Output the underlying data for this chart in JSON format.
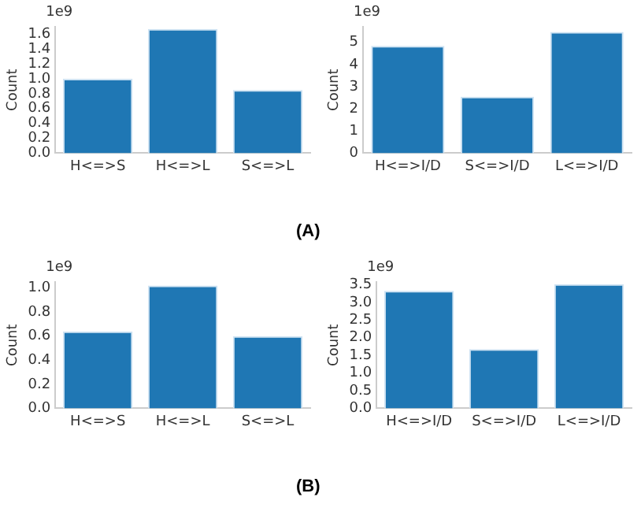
{
  "chart_data": [
    {
      "type": "bar",
      "categories": [
        "H<=>S",
        "H<=>L",
        "S<=>L"
      ],
      "values": [
        1.0,
        1.67,
        0.85
      ],
      "color": "#1f77b4",
      "ylabel": "Count",
      "ylim": [
        0,
        1.7
      ],
      "yticks": [
        {
          "value": 0,
          "label": "0.0"
        },
        0.2,
        0.4,
        0.6,
        0.8,
        {
          "value": 1,
          "label": "1.0"
        },
        1.2,
        1.4,
        1.6
      ],
      "grid": false,
      "annotations": [
        "1e9",
        "(A)"
      ]
    },
    {
      "type": "bar",
      "categories": [
        "H<=>I/D",
        "S<=>I/D",
        "L<=>I/D"
      ],
      "values": [
        4.84,
        2.55,
        5.47
      ],
      "color": "#1f77b4",
      "ylabel": "Count",
      "ylim": [
        0,
        5.7
      ],
      "yticks": [
        0,
        1,
        2,
        3,
        4,
        5
      ],
      "grid": false,
      "annotations": [
        "1e9"
      ]
    },
    {
      "type": "bar",
      "categories": [
        "H<=>S",
        "H<=>L",
        "S<=>L"
      ],
      "values": [
        0.64,
        1.02,
        0.6
      ],
      "color": "#1f77b4",
      "ylabel": "Count",
      "ylim": [
        0,
        1.05
      ],
      "yticks": [
        {
          "value": 0,
          "label": "0.0"
        },
        0.2,
        0.4,
        0.6,
        0.8,
        {
          "value": 1,
          "label": "1.0"
        }
      ],
      "grid": false,
      "annotations": [
        "1e9",
        "(B)"
      ]
    },
    {
      "type": "bar",
      "categories": [
        "H<=>I/D",
        "S<=>I/D",
        "L<=>I/D"
      ],
      "values": [
        3.33,
        1.68,
        3.52
      ],
      "color": "#1f77b4",
      "ylabel": "Count",
      "ylim": [
        0,
        3.58
      ],
      "yticks": [
        {
          "value": 0,
          "label": "0.0"
        },
        0.5,
        {
          "value": 1,
          "label": "1.0"
        },
        1.5,
        {
          "value": 2,
          "label": "2.0"
        },
        2.5,
        {
          "value": 3,
          "label": "3.0"
        },
        3.5
      ],
      "grid": false,
      "annotations": [
        "1e9"
      ]
    }
  ]
}
